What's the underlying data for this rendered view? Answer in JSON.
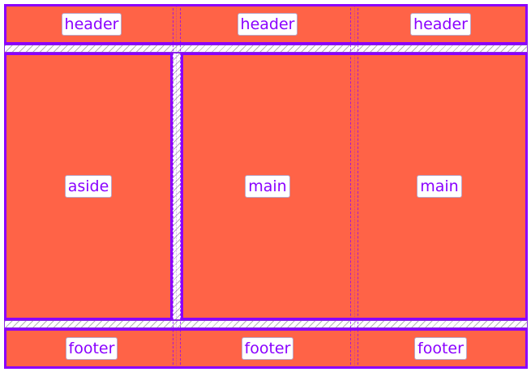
{
  "areas": {
    "header_1": "header",
    "header_2": "header",
    "header_3": "header",
    "aside": "aside",
    "main_1": "main",
    "main_2": "main",
    "footer_1": "footer",
    "footer_2": "footer",
    "footer_3": "footer"
  },
  "colors": {
    "area_fill": "#ff6347",
    "area_border": "#8a00ff",
    "label_text": "#8a00ff",
    "label_bg": "#ffffff"
  }
}
